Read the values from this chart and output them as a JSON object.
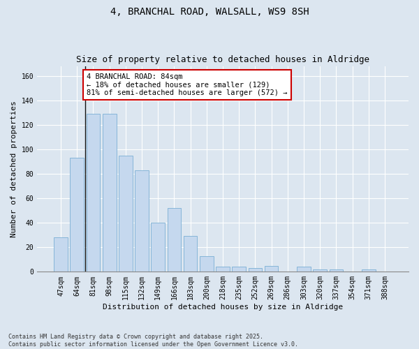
{
  "title_line1": "4, BRANCHAL ROAD, WALSALL, WS9 8SH",
  "title_line2": "Size of property relative to detached houses in Aldridge",
  "xlabel": "Distribution of detached houses by size in Aldridge",
  "ylabel": "Number of detached properties",
  "categories": [
    "47sqm",
    "64sqm",
    "81sqm",
    "98sqm",
    "115sqm",
    "132sqm",
    "149sqm",
    "166sqm",
    "183sqm",
    "200sqm",
    "218sqm",
    "235sqm",
    "252sqm",
    "269sqm",
    "286sqm",
    "303sqm",
    "320sqm",
    "337sqm",
    "354sqm",
    "371sqm",
    "388sqm"
  ],
  "values": [
    28,
    93,
    129,
    129,
    95,
    83,
    40,
    52,
    29,
    13,
    4,
    4,
    3,
    5,
    0,
    4,
    2,
    2,
    0,
    2,
    0
  ],
  "bar_color": "#c5d8ee",
  "bar_edge_color": "#7bafd4",
  "vline_x_index": 2,
  "vline_color": "#111111",
  "annotation_text": "4 BRANCHAL ROAD: 84sqm\n← 18% of detached houses are smaller (129)\n81% of semi-detached houses are larger (572) →",
  "annotation_box_color": "#ffffff",
  "annotation_box_edge_color": "#cc0000",
  "bg_color": "#dce6f0",
  "plot_bg_color": "#dce6f0",
  "footer_text": "Contains HM Land Registry data © Crown copyright and database right 2025.\nContains public sector information licensed under the Open Government Licence v3.0.",
  "ylim": [
    0,
    168
  ],
  "yticks": [
    0,
    20,
    40,
    60,
    80,
    100,
    120,
    140,
    160
  ],
  "title_fontsize": 10,
  "subtitle_fontsize": 9,
  "axis_label_fontsize": 8,
  "tick_fontsize": 7,
  "annotation_fontsize": 7.5,
  "footer_fontsize": 6
}
